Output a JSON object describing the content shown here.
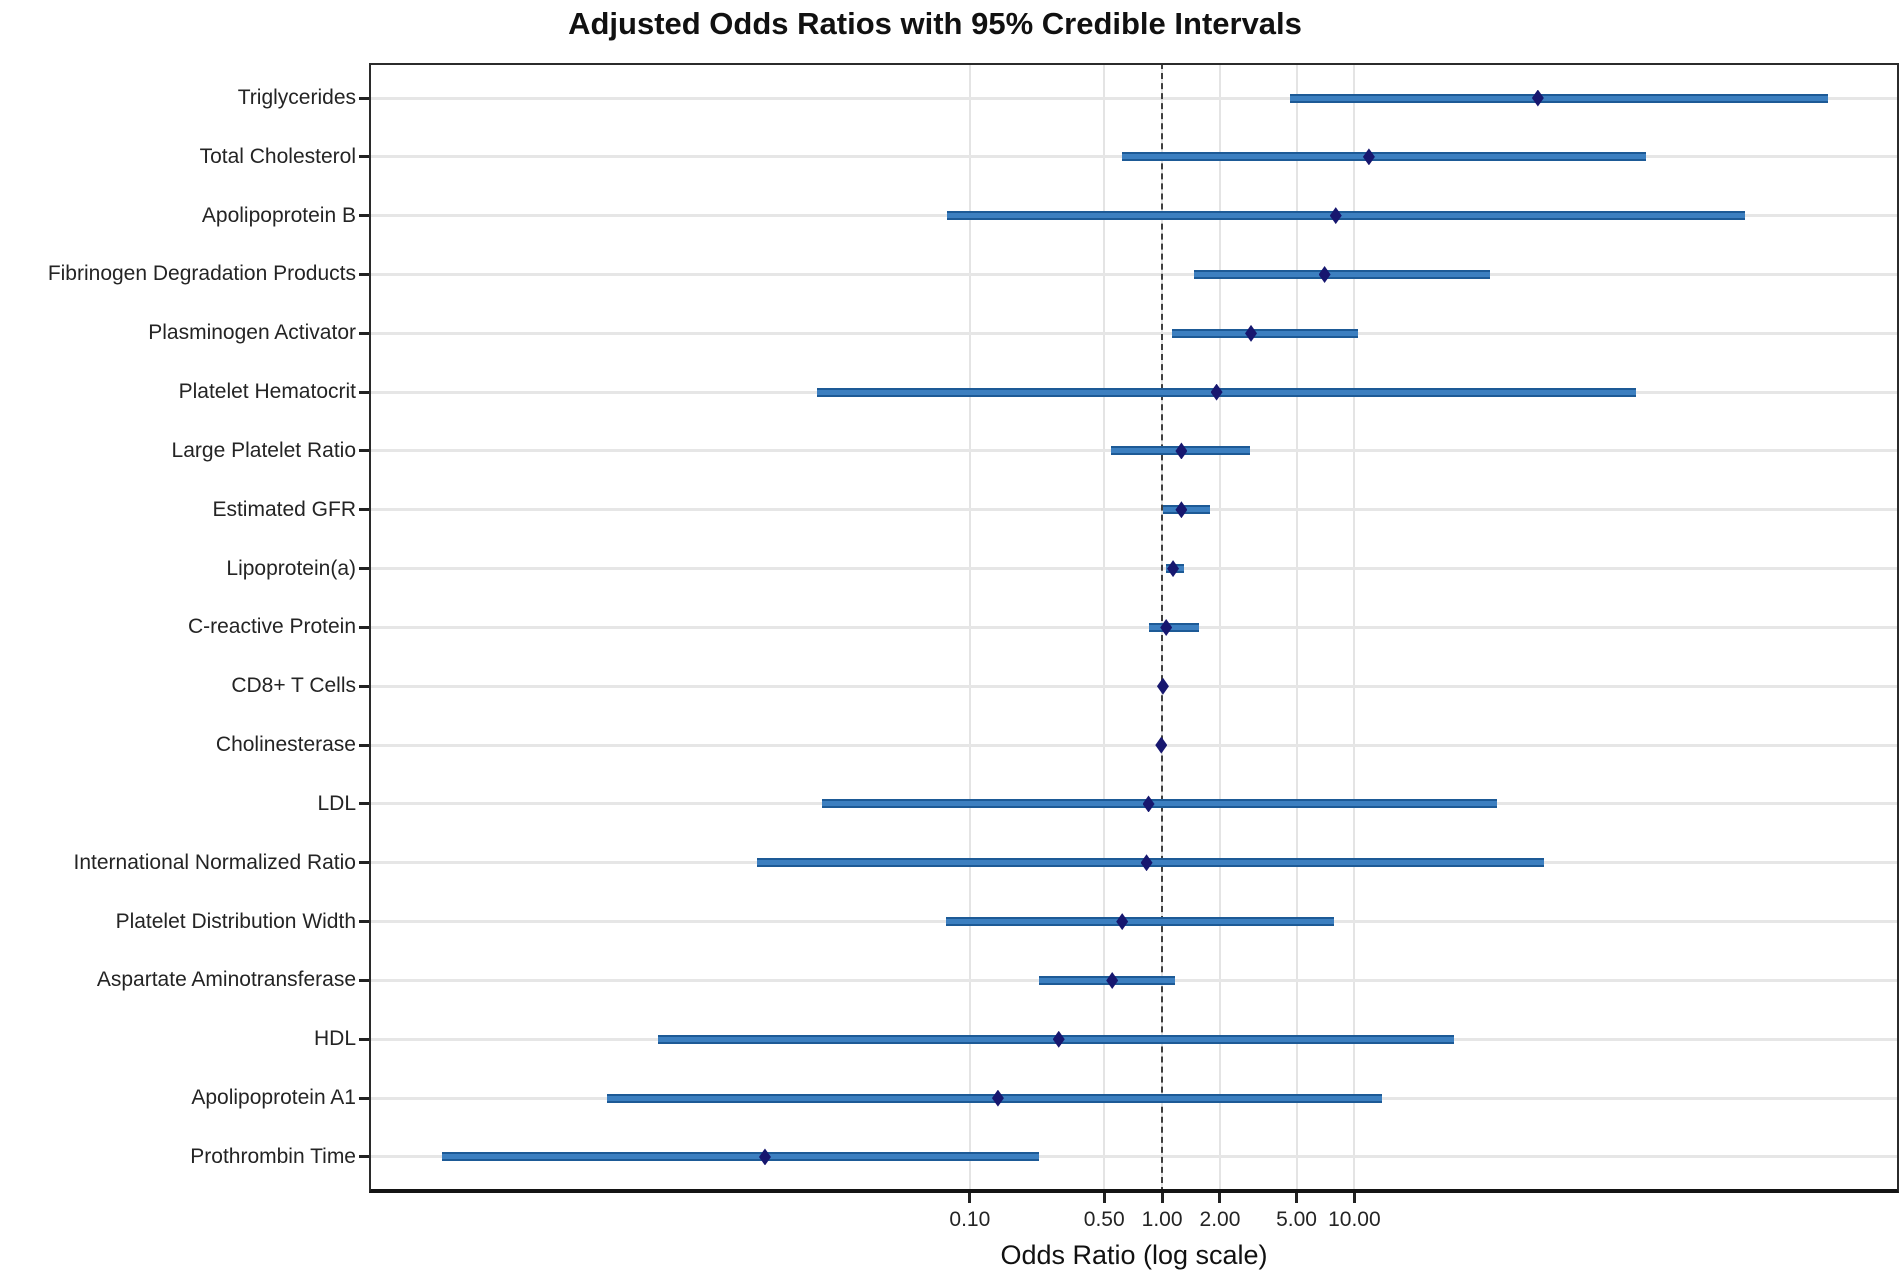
{
  "title": "Adjusted Odds Ratios with 95% Credible Intervals",
  "x_axis": {
    "label": "Odds Ratio (log scale)",
    "scale": "log",
    "min": 7.5e-05,
    "max": 6800,
    "tick_values": [
      0.1,
      0.5,
      1.0,
      2.0,
      5.0,
      10.0
    ],
    "tick_labels": [
      "0.10",
      "0.50",
      "1.00",
      "2.00",
      "5.00",
      "10.00"
    ],
    "reference_line": 1.0
  },
  "chart_data": {
    "type": "scatter",
    "subtype": "forest-plot",
    "title": "Adjusted Odds Ratios with 95% Credible Intervals",
    "xlabel": "Odds Ratio (log scale)",
    "ylabel": "",
    "xlim": [
      7.5e-05,
      6800
    ],
    "grid": true,
    "legend": false,
    "rows": [
      {
        "label": "Triglycerides",
        "or": 90.0,
        "ci_lower": 4.6,
        "ci_upper": 2900
      },
      {
        "label": "Total Cholesterol",
        "or": 11.9,
        "ci_lower": 0.62,
        "ci_upper": 330
      },
      {
        "label": "Apolipoprotein B",
        "or": 8.0,
        "ci_lower": 0.076,
        "ci_upper": 1070
      },
      {
        "label": "Fibrinogen Degradation Products",
        "or": 7.0,
        "ci_lower": 1.47,
        "ci_upper": 51
      },
      {
        "label": "Plasminogen Activator",
        "or": 2.9,
        "ci_lower": 1.12,
        "ci_upper": 10.4
      },
      {
        "label": "Platelet Hematocrit",
        "or": 1.92,
        "ci_lower": 0.016,
        "ci_upper": 290
      },
      {
        "label": "Large Platelet Ratio",
        "or": 1.26,
        "ci_lower": 0.54,
        "ci_upper": 2.85
      },
      {
        "label": "Estimated GFR",
        "or": 1.26,
        "ci_lower": 1.01,
        "ci_upper": 1.77
      },
      {
        "label": "Lipoprotein(a)",
        "or": 1.14,
        "ci_lower": 1.05,
        "ci_upper": 1.3
      },
      {
        "label": "C-reactive Protein",
        "or": 1.05,
        "ci_lower": 0.85,
        "ci_upper": 1.55
      },
      {
        "label": "CD8+ T Cells",
        "or": 1.01,
        "ci_lower": 0.99,
        "ci_upper": 1.03
      },
      {
        "label": "Cholinesterase",
        "or": 0.99,
        "ci_lower": 0.96,
        "ci_upper": 1.01
      },
      {
        "label": "LDL",
        "or": 0.85,
        "ci_lower": 0.017,
        "ci_upper": 55
      },
      {
        "label": "International Normalized Ratio",
        "or": 0.83,
        "ci_lower": 0.0078,
        "ci_upper": 97
      },
      {
        "label": "Platelet Distribution Width",
        "or": 0.62,
        "ci_lower": 0.075,
        "ci_upper": 7.8
      },
      {
        "label": "Aspartate Aminotransferase",
        "or": 0.55,
        "ci_lower": 0.23,
        "ci_upper": 1.17
      },
      {
        "label": "HDL",
        "or": 0.29,
        "ci_lower": 0.0024,
        "ci_upper": 33
      },
      {
        "label": "Apolipoprotein A1",
        "or": 0.14,
        "ci_lower": 0.0013,
        "ci_upper": 14
      },
      {
        "label": "Prothrombin Time",
        "or": 0.0086,
        "ci_lower": 0.00018,
        "ci_upper": 0.23
      }
    ]
  },
  "colors": {
    "ci_line": "#3c7fc0",
    "ci_line_edge": "#1d5a96",
    "marker": "#17176f",
    "gridline": "#e4e4e4",
    "reference_line": "#3f3f3f",
    "axis_line": "#141414",
    "text": "#242424"
  }
}
